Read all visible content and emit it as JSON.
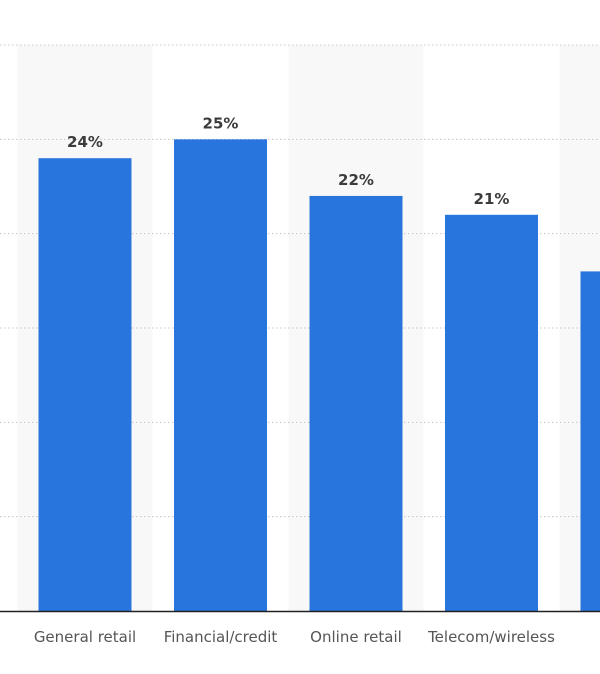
{
  "chart_data": {
    "type": "bar",
    "categories": [
      "General retail",
      "Financial/credit",
      "Online retail",
      "Telecom/wireless",
      ""
    ],
    "values": [
      24,
      25,
      22,
      21,
      18
    ],
    "value_labels": [
      "24%",
      "25%",
      "22%",
      "21%",
      ""
    ],
    "ylim": [
      0,
      30
    ],
    "grid": true,
    "colors": {
      "bar": "#2876dd",
      "band": "#f8f8f8",
      "grid": "#c8c8c8",
      "axis": "#222222"
    }
  }
}
